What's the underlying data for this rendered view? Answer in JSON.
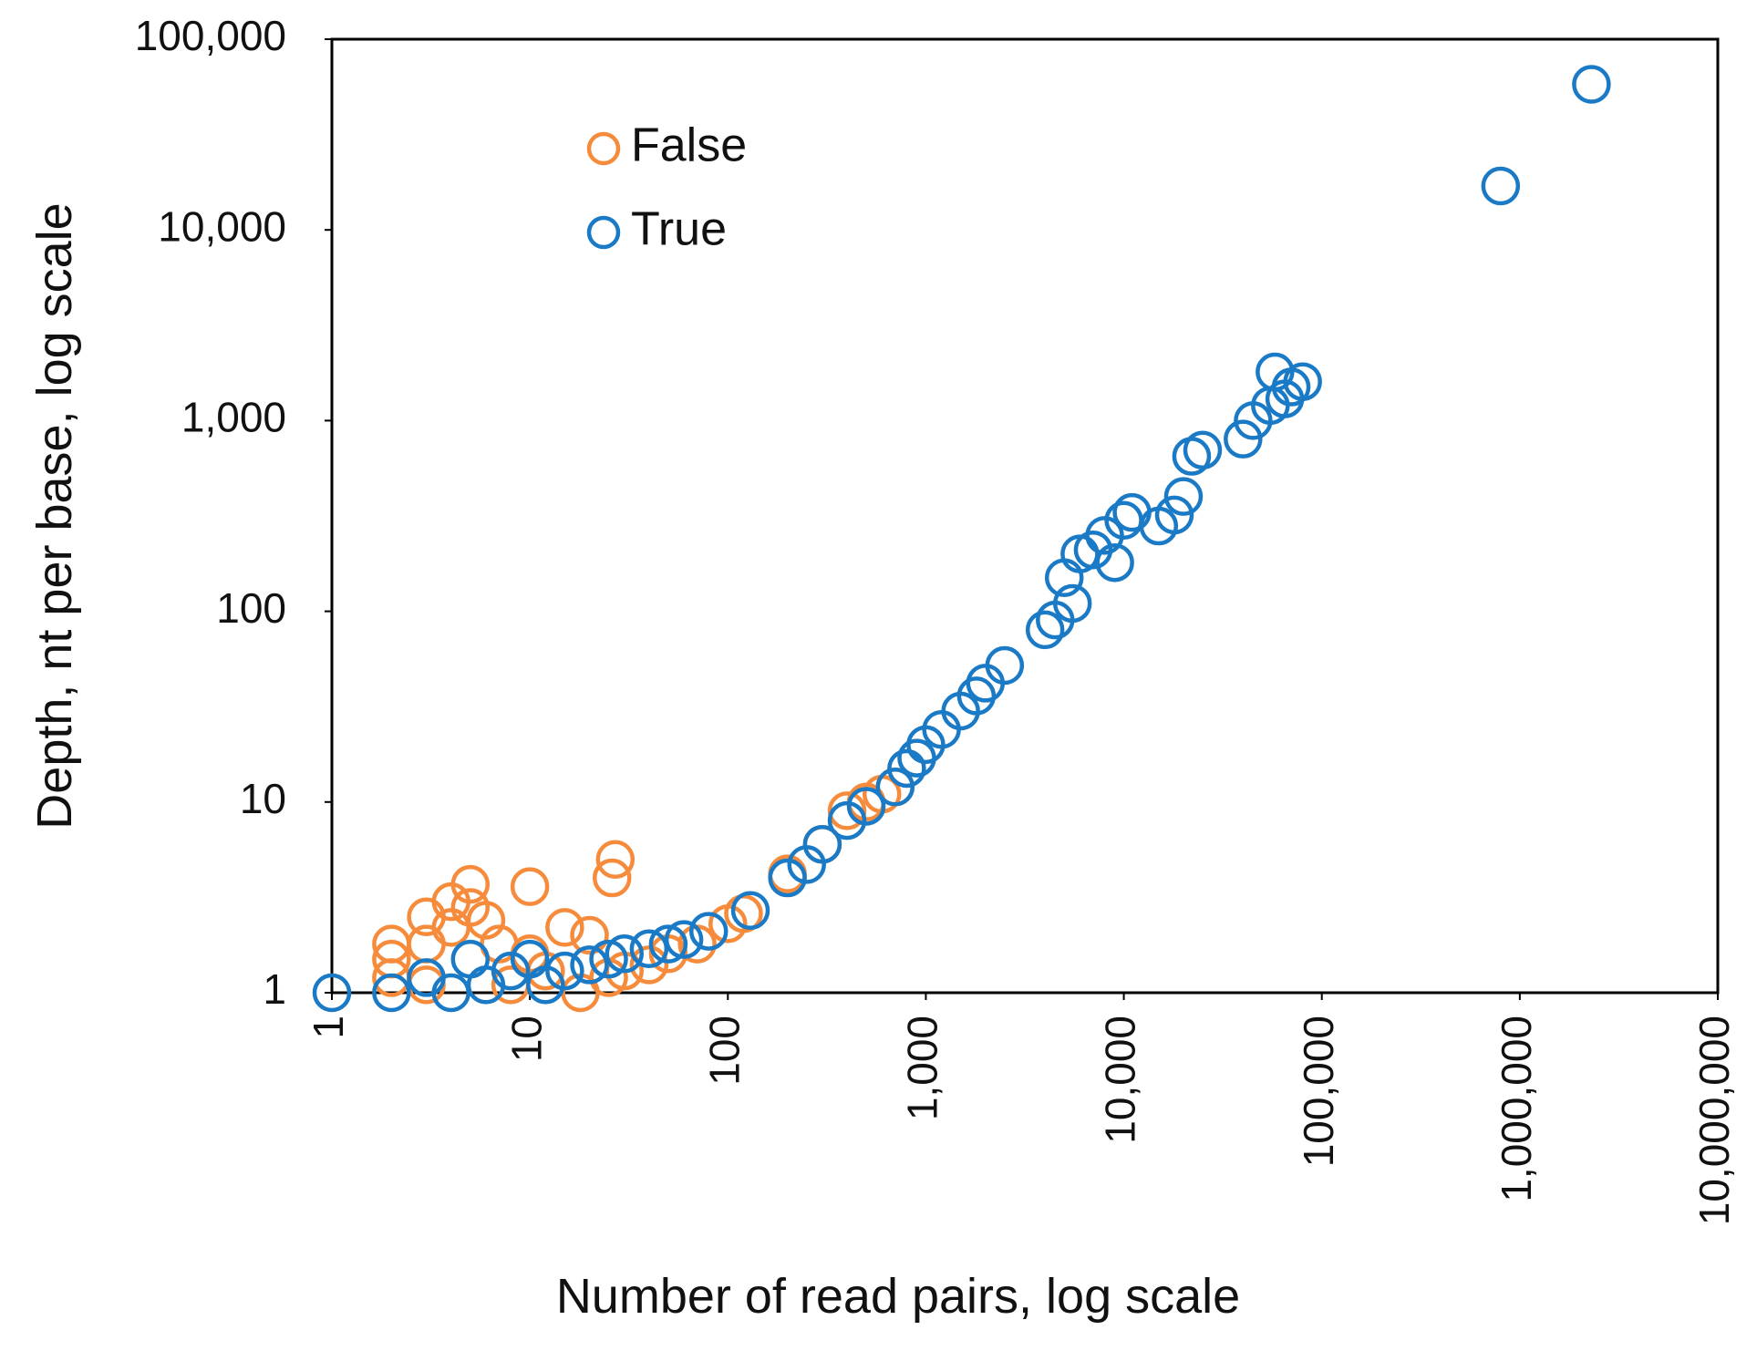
{
  "chart_data": {
    "type": "scatter",
    "x_label": "Number of read pairs, log scale",
    "y_label": "Depth, nt per base, log scale",
    "xscale": "log",
    "yscale": "log",
    "xlim": [
      1,
      10000000
    ],
    "ylim": [
      1,
      100000
    ],
    "xticks": [
      1,
      10,
      100,
      {
        "value": 1000,
        "label": "1,000"
      },
      {
        "value": 10000,
        "label": "10,000"
      },
      {
        "value": 100000,
        "label": "100,000"
      },
      {
        "value": 1000000,
        "label": "1,000,000"
      },
      {
        "value": 10000000,
        "label": "10,000,000"
      }
    ],
    "yticks": [
      1,
      10,
      100,
      {
        "value": 1000,
        "label": "1,000"
      },
      {
        "value": 10000,
        "label": "10,000"
      },
      {
        "value": 100000,
        "label": "100,000"
      }
    ],
    "legend": "upper left",
    "series": [
      {
        "name": "False",
        "color": "#f58b3b",
        "x": [
          2,
          2,
          2,
          3,
          3,
          4,
          4,
          5,
          5,
          6,
          7,
          10,
          10,
          12,
          15,
          20,
          25,
          27,
          26,
          30,
          40,
          50,
          70,
          100,
          120,
          200,
          300,
          400,
          500,
          600,
          700,
          3,
          8,
          18
        ],
        "values": [
          1.8,
          1.5,
          1.2,
          2.5,
          1.8,
          3,
          2.2,
          3.7,
          2.8,
          2.4,
          1.8,
          3.6,
          1.6,
          1.3,
          2.2,
          2,
          1.2,
          5,
          4,
          1.3,
          1.4,
          1.6,
          1.8,
          2.3,
          2.6,
          4.2,
          6,
          9,
          10,
          11,
          12,
          1.1,
          1.1,
          1
        ]
      },
      {
        "name": "True",
        "color": "#1a7ac6",
        "x": [
          1,
          2,
          3,
          4,
          5,
          6,
          8,
          10,
          12,
          15,
          20,
          25,
          30,
          40,
          50,
          60,
          80,
          130,
          200,
          250,
          300,
          400,
          500,
          700,
          800,
          900,
          1000,
          1200,
          1500,
          1800,
          2000,
          2500,
          4000,
          4500,
          5000,
          5500,
          6000,
          7000,
          8000,
          9000,
          10000,
          11000,
          15000,
          18000,
          20000,
          22000,
          25000,
          40000,
          45000,
          55000,
          58000,
          65000,
          70000,
          80000,
          800000,
          2300000
        ],
        "values": [
          1,
          1,
          1.2,
          1,
          1.5,
          1.1,
          1.3,
          1.5,
          1.1,
          1.3,
          1.4,
          1.5,
          1.6,
          1.7,
          1.8,
          1.9,
          2.1,
          2.7,
          4,
          4.7,
          6,
          8,
          9.5,
          12,
          15,
          17,
          20,
          24,
          30,
          36,
          42,
          52,
          80,
          90,
          150,
          110,
          200,
          210,
          250,
          180,
          300,
          330,
          280,
          320,
          400,
          650,
          700,
          800,
          1000,
          1200,
          1800,
          1300,
          1500,
          1600,
          17000,
          58000
        ]
      }
    ]
  }
}
